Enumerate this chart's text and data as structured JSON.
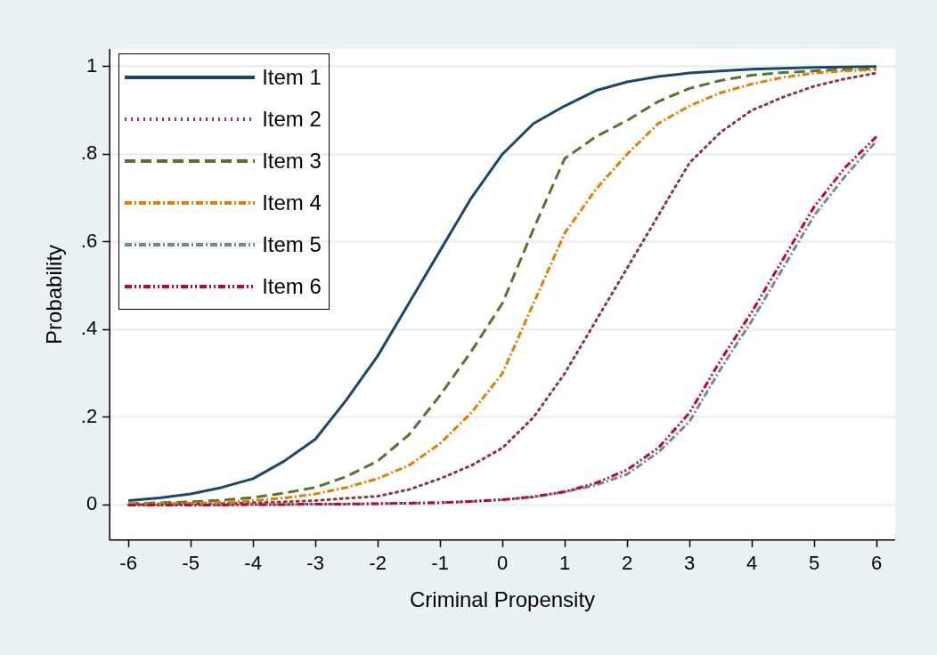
{
  "chart_data": {
    "type": "line",
    "xlabel": "Criminal Propensity",
    "ylabel": "Probability",
    "x": [
      -6,
      -5.5,
      -5,
      -4.5,
      -4,
      -3.5,
      -3,
      -2.5,
      -2,
      -1.5,
      -1,
      -0.5,
      0,
      0.5,
      1,
      1.5,
      2,
      2.5,
      3,
      3.5,
      4,
      4.5,
      5,
      5.5,
      6
    ],
    "series": [
      {
        "name": "Item 1",
        "color": "#1a476f",
        "line_style": "solid",
        "values": [
          0.01,
          0.016,
          0.025,
          0.04,
          0.06,
          0.1,
          0.15,
          0.24,
          0.34,
          0.46,
          0.58,
          0.7,
          0.8,
          0.87,
          0.91,
          0.945,
          0.965,
          0.977,
          0.985,
          0.99,
          0.994,
          0.996,
          0.998,
          0.999,
          1.0
        ]
      },
      {
        "name": "Item 2",
        "color": "#90353b",
        "line_style": "dotted",
        "values": [
          0.001,
          0.001,
          0.002,
          0.003,
          0.005,
          0.007,
          0.01,
          0.015,
          0.02,
          0.035,
          0.06,
          0.09,
          0.13,
          0.2,
          0.3,
          0.42,
          0.54,
          0.66,
          0.78,
          0.85,
          0.9,
          0.93,
          0.955,
          0.972,
          0.985
        ]
      },
      {
        "name": "Item 3",
        "color": "#55752f",
        "line_style": "dashed",
        "values": [
          0.003,
          0.005,
          0.007,
          0.011,
          0.017,
          0.027,
          0.04,
          0.065,
          0.1,
          0.16,
          0.25,
          0.35,
          0.46,
          0.63,
          0.79,
          0.84,
          0.877,
          0.92,
          0.95,
          0.968,
          0.98,
          0.986,
          0.99,
          0.993,
          0.995
        ]
      },
      {
        "name": "Item 4",
        "color": "#e37e00",
        "line_style": "dashdot",
        "values": [
          0.002,
          0.003,
          0.004,
          0.006,
          0.01,
          0.016,
          0.025,
          0.04,
          0.06,
          0.09,
          0.14,
          0.21,
          0.3,
          0.46,
          0.62,
          0.72,
          0.8,
          0.87,
          0.91,
          0.94,
          0.96,
          0.975,
          0.985,
          0.99,
          0.993
        ]
      },
      {
        "name": "Item 5",
        "color": "#6e8e84",
        "line_style": "dashdot",
        "values": [
          0,
          0,
          0,
          0,
          0.001,
          0.001,
          0.002,
          0.002,
          0.003,
          0.004,
          0.005,
          0.008,
          0.012,
          0.018,
          0.03,
          0.045,
          0.07,
          0.12,
          0.19,
          0.31,
          0.42,
          0.54,
          0.66,
          0.75,
          0.83
        ]
      },
      {
        "name": "Item 6",
        "color": "#c10534",
        "line_style": "dashdotdot",
        "values": [
          0,
          0,
          0,
          0,
          0.001,
          0.001,
          0.002,
          0.002,
          0.003,
          0.004,
          0.005,
          0.008,
          0.012,
          0.019,
          0.03,
          0.05,
          0.08,
          0.13,
          0.21,
          0.33,
          0.44,
          0.56,
          0.68,
          0.77,
          0.84
        ]
      }
    ],
    "xlim": [
      -6.3,
      6.3
    ],
    "xticks": [
      -6,
      -5,
      -4,
      -3,
      -2,
      -1,
      0,
      1,
      2,
      3,
      4,
      5,
      6
    ],
    "ylim": [
      -0.08,
      1.04
    ],
    "yticks": [
      0,
      {
        "value": 0.2,
        "label": ".2"
      },
      {
        "value": 0.4,
        "label": ".4"
      },
      {
        "value": 0.6,
        "label": ".6"
      },
      {
        "value": 0.8,
        "label": ".8"
      },
      1
    ],
    "grid": "y",
    "legend": "top left",
    "marker": "none"
  }
}
